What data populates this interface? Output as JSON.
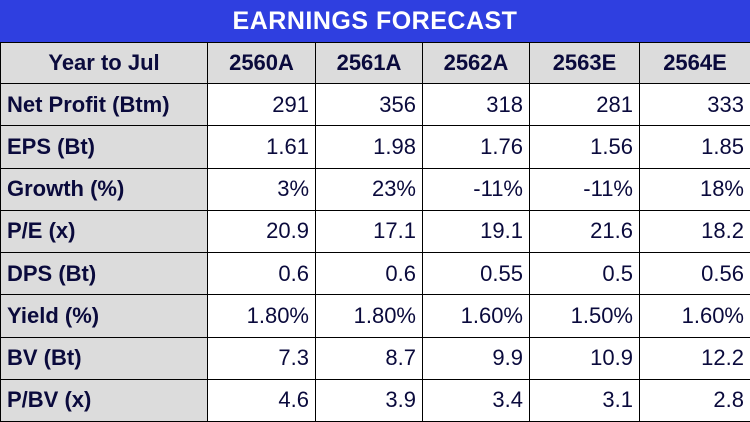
{
  "title": "EARNINGS FORECAST",
  "columns": [
    "Year to Jul",
    "2560A",
    "2561A",
    "2562A",
    "2563E",
    "2564E"
  ],
  "rows": [
    {
      "label": "Net Profit (Btm)",
      "values": [
        "291",
        "356",
        "318",
        "281",
        "333"
      ]
    },
    {
      "label": "EPS (Bt)",
      "values": [
        "1.61",
        "1.98",
        "1.76",
        "1.56",
        "1.85"
      ]
    },
    {
      "label": "Growth (%)",
      "values": [
        "3%",
        "23%",
        "-11%",
        "-11%",
        "18%"
      ]
    },
    {
      "label": "P/E (x)",
      "values": [
        "20.9",
        "17.1",
        "19.1",
        "21.6",
        "18.2"
      ]
    },
    {
      "label": "DPS (Bt)",
      "values": [
        "0.6",
        "0.6",
        "0.55",
        "0.5",
        "0.56"
      ]
    },
    {
      "label": "Yield (%)",
      "values": [
        "1.80%",
        "1.80%",
        "1.60%",
        "1.50%",
        "1.60%"
      ]
    },
    {
      "label": "BV (Bt)",
      "values": [
        "7.3",
        "8.7",
        "9.9",
        "10.9",
        "12.2"
      ]
    },
    {
      "label": "P/BV (x)",
      "values": [
        "4.6",
        "3.9",
        "3.4",
        "3.1",
        "2.8"
      ]
    }
  ],
  "colors": {
    "title_bg": "#2f3fe0",
    "header_bg": "#dcdcdc",
    "text": "#0a0a3c"
  }
}
